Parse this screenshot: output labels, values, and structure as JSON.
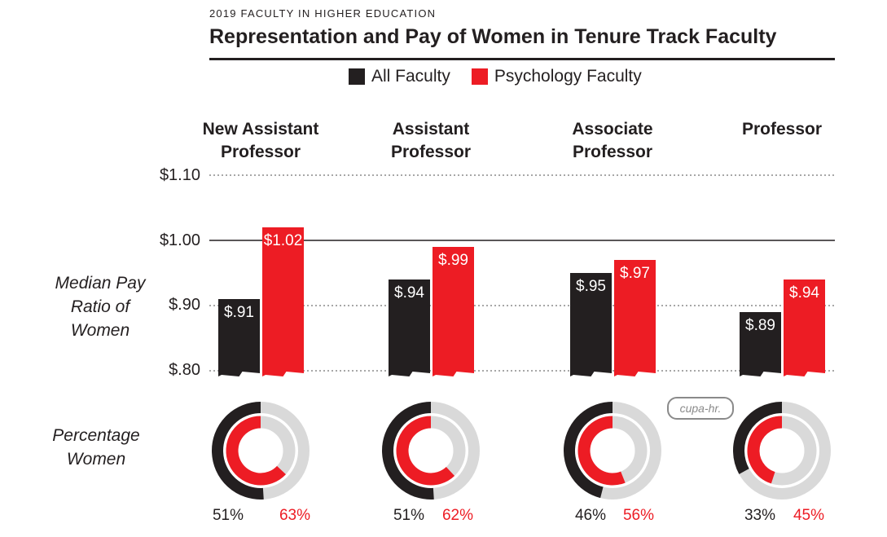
{
  "kicker": "2019 FACULTY IN HIGHER EDUCATION",
  "title": "Representation and Pay of Women in Tenure Track Faculty",
  "legend": [
    {
      "label": "All Faculty",
      "color": "#231f20"
    },
    {
      "label": "Psychology Faculty",
      "color": "#ed1c24"
    }
  ],
  "logo_text": "cupa-hr.",
  "chart_data": {
    "type": "bar",
    "title": "Representation and Pay of Women in Tenure Track Faculty",
    "ylabel": "Median Pay Ratio of Women",
    "ylim": [
      0.8,
      1.1
    ],
    "yticks": [
      "$1.10",
      "$1.00",
      "$.90",
      "$.80"
    ],
    "ytick_values": [
      1.1,
      1.0,
      0.9,
      0.8
    ],
    "reference_line": 1.0,
    "grid": "dotted",
    "categories": [
      "New Assistant Professor",
      "Assistant Professor",
      "Associate Professor",
      "Professor"
    ],
    "category_lines": [
      [
        "New Assistant",
        "Professor"
      ],
      [
        "Assistant",
        "Professor"
      ],
      [
        "Associate",
        "Professor"
      ],
      [
        "Professor",
        ""
      ]
    ],
    "series": [
      {
        "name": "All Faculty",
        "color": "#231f20",
        "values": [
          0.91,
          0.94,
          0.95,
          0.89
        ],
        "labels": [
          "$.91",
          "$.94",
          "$.95",
          "$.89"
        ]
      },
      {
        "name": "Psychology Faculty",
        "color": "#ed1c24",
        "values": [
          1.02,
          0.99,
          0.97,
          0.94
        ],
        "labels": [
          "$1.02",
          "$.99",
          "$.97",
          "$.94"
        ]
      }
    ],
    "percentage_women": {
      "label": "Percentage Women",
      "all_faculty": [
        51,
        51,
        46,
        33
      ],
      "psychology_faculty": [
        63,
        62,
        56,
        45
      ],
      "all_faculty_labels": [
        "51%",
        "51%",
        "46%",
        "33%"
      ],
      "psychology_faculty_labels": [
        "63%",
        "62%",
        "56%",
        "45%"
      ],
      "remainder_color": "#d9d9d9"
    }
  }
}
